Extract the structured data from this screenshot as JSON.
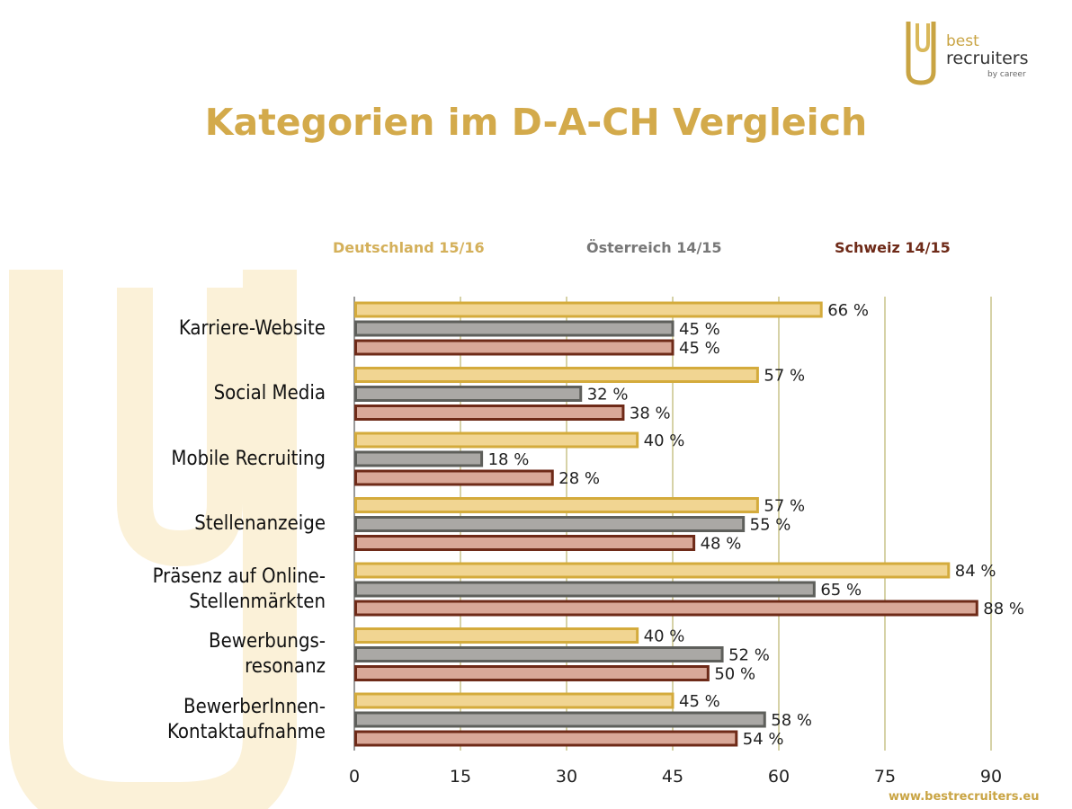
{
  "logo": {
    "line1": "best",
    "line2": "recruiters",
    "line3": "by career"
  },
  "chart_data": {
    "type": "bar",
    "orientation": "horizontal",
    "title": "Kategorien im D-A-CH Vergleich",
    "categories": [
      "Karriere-Website",
      "Social Media",
      "Mobile Recruiting",
      "Stellenanzeige",
      "Präsenz auf Online-\nStellenmärkten",
      "Bewerbungs-\nresonanz",
      "BewerberInnen-\nKontaktaufnahme"
    ],
    "series": [
      {
        "name": "Deutschland 15/16",
        "values": [
          66,
          57,
          40,
          57,
          84,
          40,
          45
        ],
        "fill": "#f1d592",
        "stroke": "#d4ab3c"
      },
      {
        "name": "Österreich 14/15",
        "values": [
          45,
          32,
          18,
          55,
          65,
          52,
          58
        ],
        "fill": "#aaa8a5",
        "stroke": "#5e5f5b"
      },
      {
        "name": "Schweiz 14/15",
        "values": [
          45,
          38,
          28,
          48,
          88,
          50,
          54
        ],
        "fill": "#d9a898",
        "stroke": "#6e2a18"
      }
    ],
    "value_suffix": " %",
    "xlim": [
      0,
      90
    ],
    "xticks": [
      "0",
      "15",
      "30",
      "45",
      "60",
      "75",
      "90"
    ],
    "grid": true,
    "legend_placement": "top",
    "legend_colors": [
      "#d4b05a",
      "#777777",
      "#6e2a18"
    ],
    "grid_color": "#c8c48a"
  },
  "footer": "www.bestrecruiters.eu"
}
